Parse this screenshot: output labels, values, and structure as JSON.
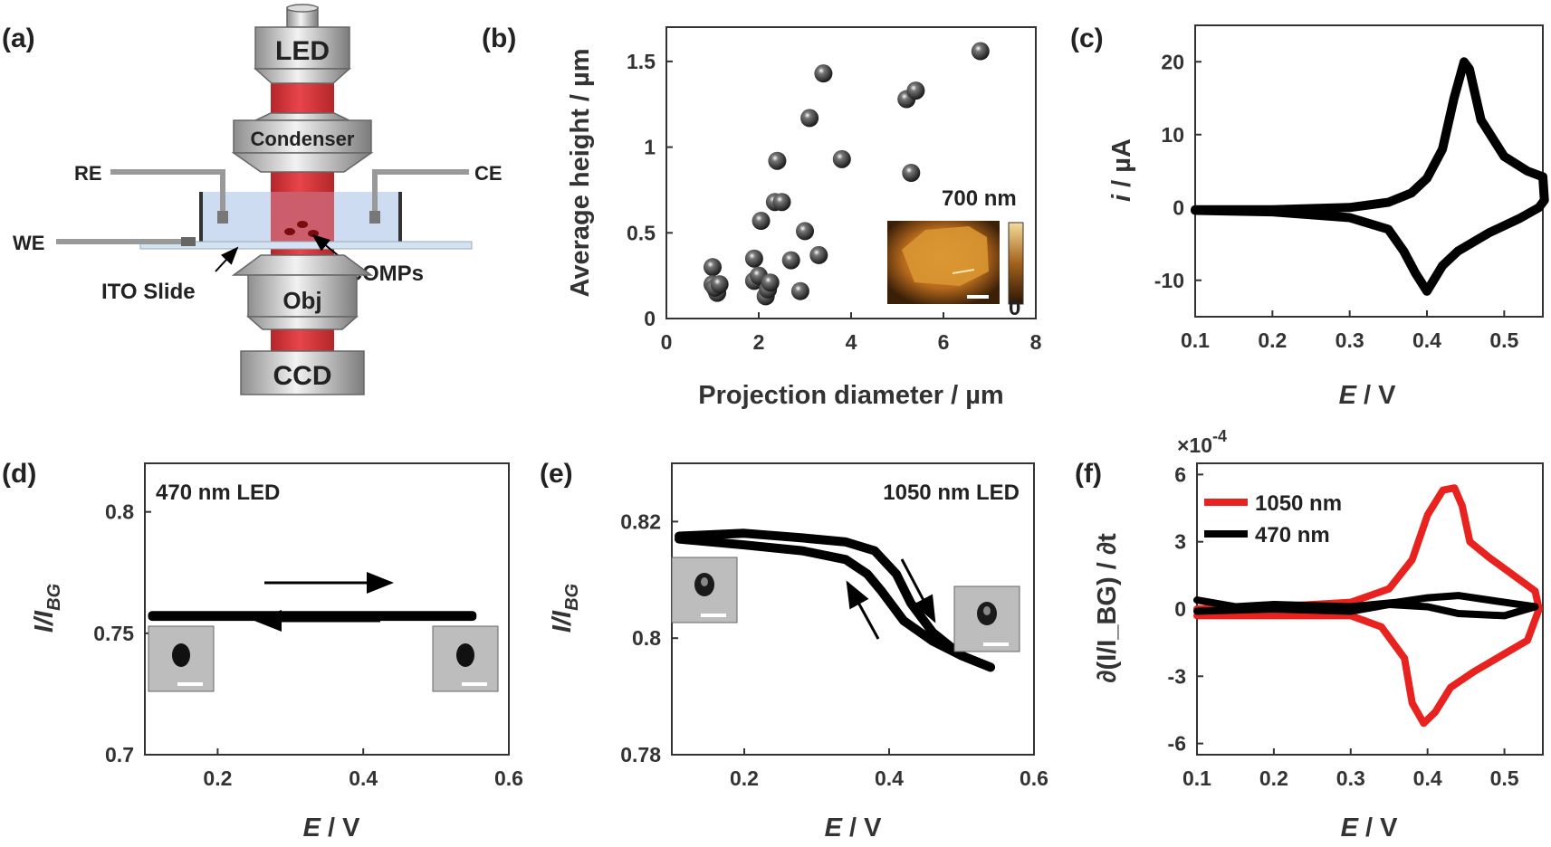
{
  "panel_labels": {
    "a": "(a)",
    "b": "(b)",
    "c": "(c)",
    "d": "(d)",
    "e": "(e)",
    "f": "(f)"
  },
  "schematic": {
    "led": "LED",
    "condenser": "Condenser",
    "obj": "Obj",
    "ccd": "CCD",
    "re": "RE",
    "ce": "CE",
    "we": "WE",
    "ito": "ITO Slide",
    "lcomps": "LCOMPs"
  },
  "colors": {
    "red": "#e8231f",
    "black": "#000000",
    "beam": "#cc2a2e",
    "cell": "#c9d8ef"
  },
  "chart_data": [
    {
      "id": "b",
      "type": "scatter",
      "xlabel": "Projection diameter / µm",
      "ylabel": "Average height / µm",
      "xlim": [
        0,
        8
      ],
      "ylim": [
        0,
        1.7
      ],
      "xticks": [
        "0",
        "2",
        "4",
        "6",
        "8"
      ],
      "yticks": [
        "0",
        "0.5",
        "1",
        "1.5"
      ],
      "points": [
        [
          1.0,
          0.3
        ],
        [
          1.0,
          0.2
        ],
        [
          1.1,
          0.15
        ],
        [
          1.05,
          0.18
        ],
        [
          1.15,
          0.2
        ],
        [
          1.9,
          0.35
        ],
        [
          1.9,
          0.22
        ],
        [
          2.0,
          0.25
        ],
        [
          2.05,
          0.57
        ],
        [
          2.15,
          0.13
        ],
        [
          2.2,
          0.17
        ],
        [
          2.25,
          0.21
        ],
        [
          2.35,
          0.68
        ],
        [
          2.4,
          0.92
        ],
        [
          2.5,
          0.68
        ],
        [
          2.7,
          0.34
        ],
        [
          2.9,
          0.16
        ],
        [
          3.0,
          0.51
        ],
        [
          3.1,
          1.17
        ],
        [
          3.3,
          0.37
        ],
        [
          3.4,
          1.43
        ],
        [
          3.8,
          0.93
        ],
        [
          5.2,
          1.28
        ],
        [
          5.3,
          0.85
        ],
        [
          5.4,
          1.33
        ],
        [
          6.8,
          1.56
        ]
      ],
      "inset": {
        "scale_label": "700 nm",
        "colorbar_min": "0"
      }
    },
    {
      "id": "c",
      "type": "line",
      "xlabel_italic": "E",
      "xlabel_rest": " / V",
      "ylabel_italic": "i",
      "ylabel_rest": " / µA",
      "xlim": [
        0.1,
        0.55
      ],
      "ylim": [
        -15,
        25
      ],
      "xticks": [
        "0.1",
        "0.2",
        "0.3",
        "0.4",
        "0.5"
      ],
      "yticks": [
        "-10",
        "0",
        "10",
        "20"
      ],
      "forward": [
        [
          0.1,
          -0.3
        ],
        [
          0.2,
          -0.3
        ],
        [
          0.3,
          0
        ],
        [
          0.35,
          0.7
        ],
        [
          0.38,
          2
        ],
        [
          0.4,
          4
        ],
        [
          0.42,
          8
        ],
        [
          0.435,
          15
        ],
        [
          0.448,
          20
        ],
        [
          0.455,
          19
        ],
        [
          0.47,
          12
        ],
        [
          0.5,
          7
        ],
        [
          0.53,
          5
        ],
        [
          0.55,
          4.2
        ]
      ],
      "reverse": [
        [
          0.55,
          4.2
        ],
        [
          0.552,
          1
        ],
        [
          0.545,
          0
        ],
        [
          0.52,
          -1.5
        ],
        [
          0.48,
          -3.5
        ],
        [
          0.44,
          -6
        ],
        [
          0.42,
          -8
        ],
        [
          0.4,
          -11.5
        ],
        [
          0.385,
          -9
        ],
        [
          0.37,
          -6
        ],
        [
          0.35,
          -3
        ],
        [
          0.3,
          -1.4
        ],
        [
          0.2,
          -0.6
        ],
        [
          0.1,
          -0.4
        ]
      ]
    },
    {
      "id": "d",
      "type": "line",
      "title": "470 nm LED",
      "xlabel_italic": "E",
      "xlabel_rest": " / V",
      "ylabel_italic": "I/I",
      "ylabel_sub": "BG",
      "xlim": [
        0.1,
        0.6
      ],
      "ylim": [
        0.7,
        0.82
      ],
      "xticks": [
        "0.2",
        "0.4",
        "0.6"
      ],
      "yticks": [
        "0.7",
        "0.75",
        "0.8"
      ],
      "forward": [
        [
          0.11,
          0.7575
        ],
        [
          0.3,
          0.7575
        ],
        [
          0.55,
          0.7575
        ]
      ],
      "reverse": [
        [
          0.55,
          0.7568
        ],
        [
          0.3,
          0.7568
        ],
        [
          0.11,
          0.7568
        ]
      ]
    },
    {
      "id": "e",
      "type": "line",
      "title": "1050 nm LED",
      "xlabel_italic": "E",
      "xlabel_rest": " / V",
      "ylabel_italic": "I/I",
      "ylabel_sub": "BG",
      "xlim": [
        0.1,
        0.6
      ],
      "ylim": [
        0.78,
        0.83
      ],
      "xticks": [
        "0.2",
        "0.4",
        "0.6"
      ],
      "yticks": [
        "0.78",
        "0.8",
        "0.82"
      ],
      "forward": [
        [
          0.11,
          0.8175
        ],
        [
          0.2,
          0.818
        ],
        [
          0.28,
          0.8172
        ],
        [
          0.34,
          0.8165
        ],
        [
          0.38,
          0.815
        ],
        [
          0.41,
          0.811
        ],
        [
          0.43,
          0.806
        ],
        [
          0.46,
          0.801
        ],
        [
          0.5,
          0.797
        ],
        [
          0.54,
          0.795
        ]
      ],
      "reverse": [
        [
          0.54,
          0.795
        ],
        [
          0.5,
          0.797
        ],
        [
          0.46,
          0.7995
        ],
        [
          0.42,
          0.803
        ],
        [
          0.39,
          0.808
        ],
        [
          0.37,
          0.811
        ],
        [
          0.34,
          0.8135
        ],
        [
          0.28,
          0.815
        ],
        [
          0.2,
          0.816
        ],
        [
          0.11,
          0.817
        ]
      ]
    },
    {
      "id": "f",
      "type": "line",
      "multiplier": "×10",
      "multiplier_exp": "-4",
      "xlabel_italic": "E",
      "xlabel_rest": " / V",
      "ylabel": "∂(I/I_BG) / ∂t",
      "xlim": [
        0.1,
        0.55
      ],
      "ylim": [
        -6.5,
        6.5
      ],
      "xticks": [
        "0.1",
        "0.2",
        "0.3",
        "0.4",
        "0.5"
      ],
      "yticks": [
        "-6",
        "-3",
        "0",
        "3",
        "6"
      ],
      "series": [
        {
          "name": "1050 nm",
          "points": [
            [
              0.1,
              0
            ],
            [
              0.2,
              0.1
            ],
            [
              0.3,
              0.3
            ],
            [
              0.35,
              0.9
            ],
            [
              0.38,
              2.2
            ],
            [
              0.4,
              4.2
            ],
            [
              0.42,
              5.3
            ],
            [
              0.435,
              5.4
            ],
            [
              0.445,
              4.6
            ],
            [
              0.455,
              3
            ],
            [
              0.48,
              2.3
            ],
            [
              0.5,
              1.8
            ],
            [
              0.54,
              0.8
            ],
            [
              0.545,
              0
            ],
            [
              0.53,
              -1.4
            ],
            [
              0.5,
              -2
            ],
            [
              0.46,
              -2.8
            ],
            [
              0.43,
              -3.5
            ],
            [
              0.41,
              -4.6
            ],
            [
              0.395,
              -5.1
            ],
            [
              0.38,
              -4.2
            ],
            [
              0.37,
              -2.2
            ],
            [
              0.34,
              -0.8
            ],
            [
              0.3,
              -0.3
            ],
            [
              0.2,
              -0.3
            ],
            [
              0.1,
              -0.3
            ]
          ]
        },
        {
          "name": "470 nm",
          "points": [
            [
              0.1,
              0.4
            ],
            [
              0.15,
              0.1
            ],
            [
              0.2,
              0.2
            ],
            [
              0.3,
              0.1
            ],
            [
              0.36,
              0.3
            ],
            [
              0.4,
              0.5
            ],
            [
              0.44,
              0.6
            ],
            [
              0.5,
              0.3
            ],
            [
              0.54,
              0.1
            ],
            [
              0.5,
              -0.3
            ],
            [
              0.44,
              -0.2
            ],
            [
              0.4,
              0.1
            ],
            [
              0.35,
              0.2
            ],
            [
              0.3,
              -0.1
            ],
            [
              0.2,
              0
            ],
            [
              0.1,
              -0.1
            ]
          ]
        }
      ]
    }
  ]
}
